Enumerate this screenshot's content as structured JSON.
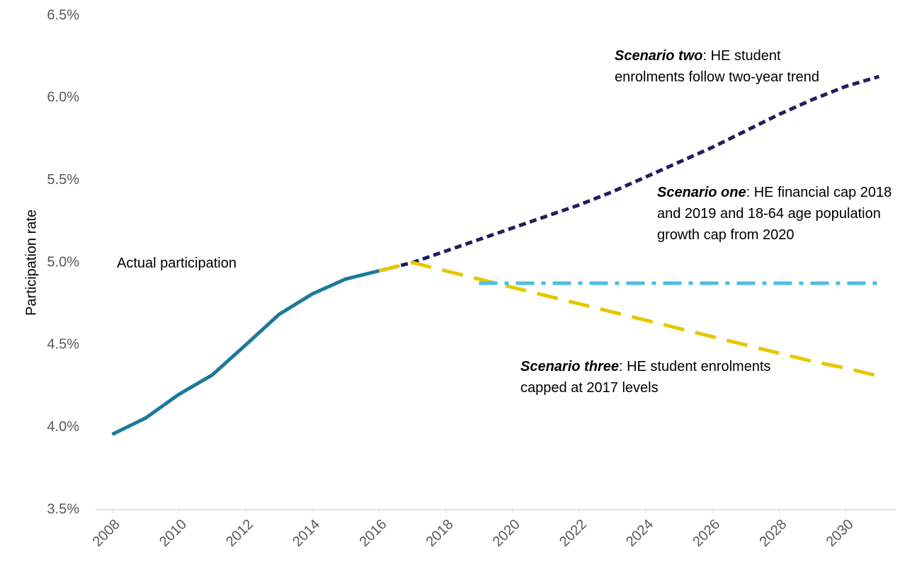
{
  "chart_data": {
    "type": "line",
    "y_label": "Participation rate",
    "x": [
      2008,
      2009,
      2010,
      2011,
      2012,
      2013,
      2014,
      2015,
      2016,
      2017,
      2018,
      2019,
      2020,
      2021,
      2022,
      2023,
      2024,
      2025,
      2026,
      2027,
      2028,
      2029,
      2030,
      2031
    ],
    "series": [
      {
        "name": "Actual participation",
        "color": "#1a7a9a",
        "dash": "solid",
        "values": [
          3.957,
          4.056,
          4.2,
          4.318,
          4.5,
          4.685,
          4.81,
          4.9,
          4.95,
          null,
          null,
          null,
          null,
          null,
          null,
          null,
          null,
          null,
          null,
          null,
          null,
          null,
          null,
          null
        ]
      },
      {
        "name": "Scenario two",
        "color": "#1f1f5e",
        "dash": "dashed",
        "values": [
          null,
          null,
          null,
          null,
          null,
          null,
          null,
          null,
          4.95,
          5.0,
          5.07,
          5.14,
          5.21,
          5.28,
          5.35,
          5.43,
          5.52,
          5.61,
          5.7,
          5.8,
          5.9,
          5.99,
          6.07,
          6.13
        ]
      },
      {
        "name": "Scenario three",
        "color": "#e6c700",
        "dash": "longdash",
        "values": [
          null,
          null,
          null,
          null,
          null,
          null,
          null,
          null,
          4.95,
          5.0,
          4.95,
          4.9,
          4.85,
          4.8,
          4.75,
          4.7,
          4.65,
          4.6,
          4.55,
          4.5,
          4.45,
          4.4,
          4.36,
          4.31
        ]
      },
      {
        "name": "Scenario one",
        "color": "#4dbde0",
        "dash": "dashdot",
        "values": [
          null,
          null,
          null,
          null,
          null,
          null,
          null,
          null,
          null,
          null,
          null,
          4.875,
          4.875,
          4.875,
          4.875,
          4.875,
          4.875,
          4.875,
          4.875,
          4.875,
          4.875,
          4.875,
          4.875,
          4.875
        ]
      }
    ],
    "xlim": [
      2007.5,
      2031.5
    ],
    "xticks": [
      2008,
      2010,
      2012,
      2014,
      2016,
      2018,
      2020,
      2022,
      2024,
      2026,
      2028,
      2030
    ],
    "ylim": [
      3.5,
      6.5
    ],
    "yticks": [
      {
        "value": 3.5,
        "label": "3.5%"
      },
      {
        "value": 4.0,
        "label": "4.0%"
      },
      {
        "value": 4.5,
        "label": "4.5%"
      },
      {
        "value": 5.0,
        "label": "5.0%"
      },
      {
        "value": 5.5,
        "label": "5.5%"
      },
      {
        "value": 6.0,
        "label": "6.0%"
      },
      {
        "value": 6.5,
        "label": "6.5%"
      }
    ],
    "grid": false,
    "annotations": [
      {
        "text": "Actual participation"
      },
      {
        "bold": "Scenario two",
        "text": ": HE student enrolments follow two-year trend"
      },
      {
        "bold": "Scenario one",
        "text": ": HE financial cap 2018 and 2019 and 18-64 age population growth cap from 2020"
      },
      {
        "bold": "Scenario three",
        "text": ": HE student enrolments  capped at 2017 levels"
      }
    ]
  }
}
